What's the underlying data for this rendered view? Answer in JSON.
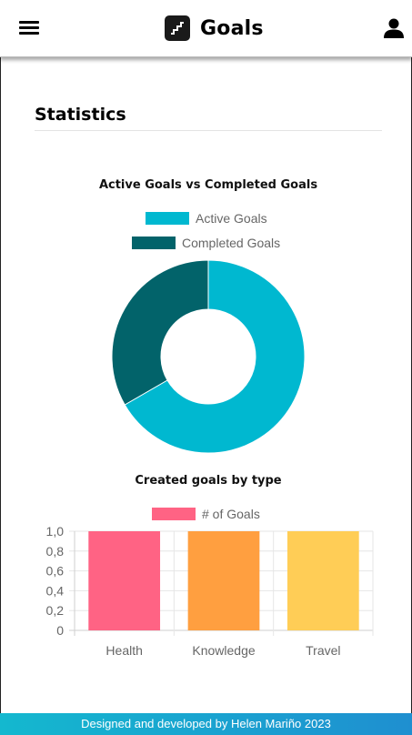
{
  "header": {
    "title": "Goals",
    "menu_icon": "hamburger-menu-icon",
    "logo_icon": "stairs-logo-icon",
    "user_icon": "user-account-icon"
  },
  "statistics": {
    "title": "Statistics"
  },
  "footer": {
    "text": "Designed and developed by Helen Mariño 2023"
  },
  "colors": {
    "active": "#00b8d0",
    "completed": "#02636a",
    "health": "#ff6384",
    "knowledge": "#ff9f40",
    "travel": "#ffcd56"
  },
  "chart_data": [
    {
      "type": "pie",
      "variant": "doughnut",
      "title": "Active Goals vs Completed Goals",
      "labels": [
        "Active Goals",
        "Completed Goals"
      ],
      "values": [
        2,
        1
      ],
      "colors": [
        "#00b8d0",
        "#02636a"
      ],
      "legend": "top"
    },
    {
      "type": "bar",
      "title": "Created goals by type",
      "categories": [
        "Health",
        "Knowledge",
        "Travel"
      ],
      "series": [
        {
          "name": "# of Goals",
          "values": [
            1,
            1,
            1
          ],
          "colors": [
            "#ff6384",
            "#ff9f40",
            "#ffcd56"
          ]
        }
      ],
      "ylim": [
        0,
        1
      ],
      "yticks": [
        "0",
        "0,2",
        "0,4",
        "0,6",
        "0,8",
        "1,0"
      ],
      "grid": true,
      "legend": "top"
    }
  ]
}
